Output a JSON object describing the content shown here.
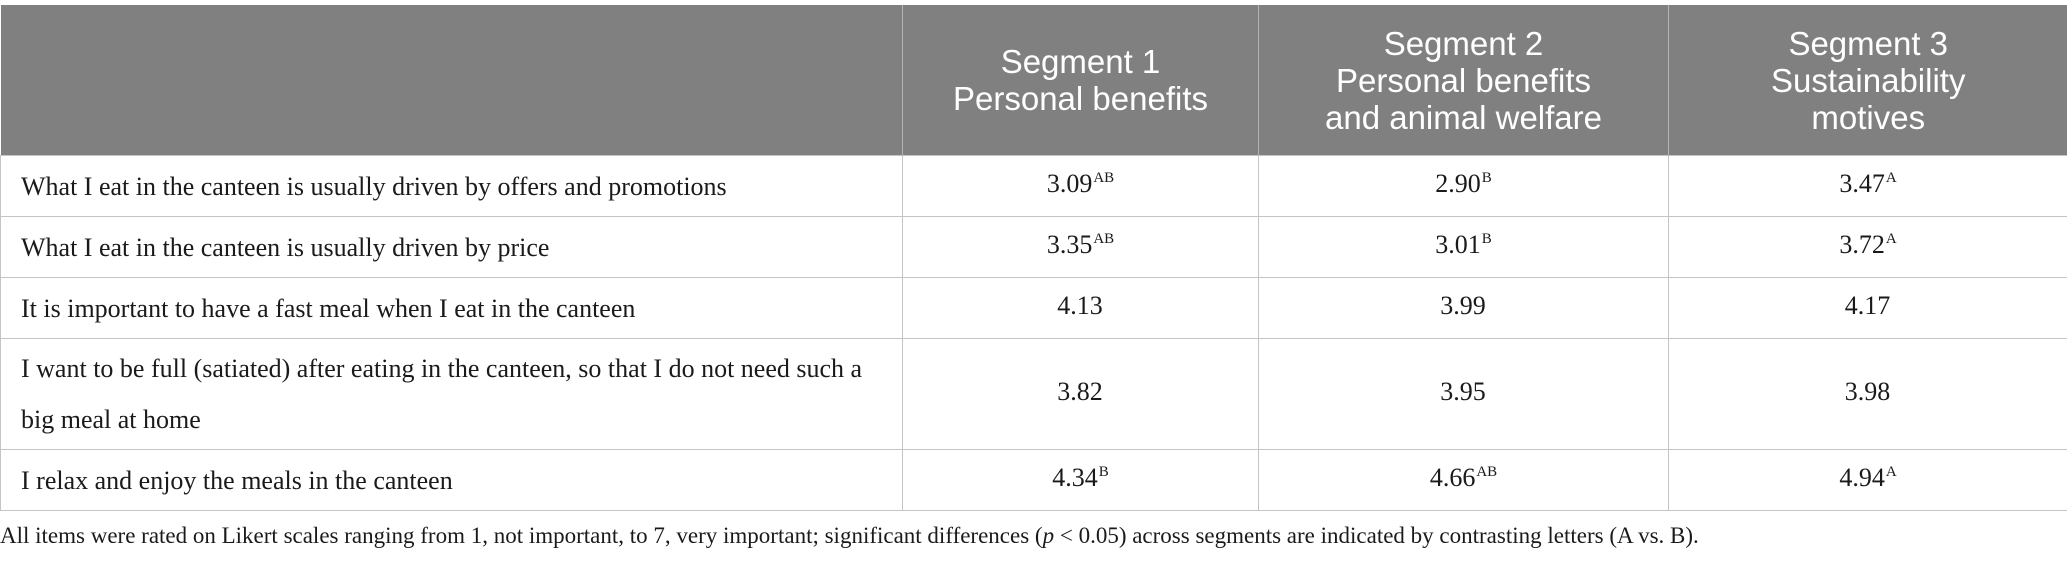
{
  "table": {
    "headers": [
      {
        "lines": [
          "",
          ""
        ]
      },
      {
        "lines": [
          "Segment 1",
          "Personal benefits"
        ]
      },
      {
        "lines": [
          "Segment 2",
          "Personal benefits",
          "and animal welfare"
        ]
      },
      {
        "lines": [
          "Segment 3",
          "Sustainability",
          "motives"
        ]
      }
    ],
    "rows": [
      {
        "item": "What I eat in the canteen is usually driven by offers and promotions",
        "cells": [
          {
            "value": "3.09",
            "sup": "AB"
          },
          {
            "value": "2.90",
            "sup": "B"
          },
          {
            "value": "3.47",
            "sup": "A"
          }
        ]
      },
      {
        "item": "What I eat in the canteen is usually driven by price",
        "cells": [
          {
            "value": "3.35",
            "sup": "AB"
          },
          {
            "value": "3.01",
            "sup": "B"
          },
          {
            "value": "3.72",
            "sup": "A"
          }
        ]
      },
      {
        "item": "It is important to have a fast meal when I eat in the canteen",
        "cells": [
          {
            "value": "4.13",
            "sup": ""
          },
          {
            "value": "3.99",
            "sup": ""
          },
          {
            "value": "4.17",
            "sup": ""
          }
        ]
      },
      {
        "item": "I want to be full (satiated) after eating in the canteen, so that I do not need such a big meal at home",
        "cells": [
          {
            "value": "3.82",
            "sup": ""
          },
          {
            "value": "3.95",
            "sup": ""
          },
          {
            "value": "3.98",
            "sup": ""
          }
        ]
      },
      {
        "item": "I relax and enjoy the meals in the canteen",
        "cells": [
          {
            "value": "4.34",
            "sup": "B"
          },
          {
            "value": "4.66",
            "sup": "AB"
          },
          {
            "value": "4.94",
            "sup": "A"
          }
        ]
      }
    ]
  },
  "note": {
    "before": "All items were rated on Likert scales ranging from 1, not important, to 7, very important; significant differences (",
    "italic": "p",
    "after": " < 0.05) across segments are indicated by contrasting letters (A vs. B)."
  },
  "colors": {
    "header_bg": "#7f807f",
    "header_text": "#ffffff",
    "grid": "#c4c4c4"
  }
}
